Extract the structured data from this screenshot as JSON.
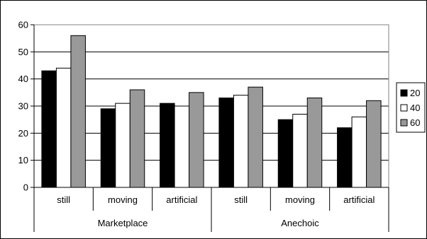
{
  "chart_data": {
    "type": "bar",
    "title": "",
    "xlabel": "",
    "ylabel": "",
    "ylim": [
      0,
      60
    ],
    "yticks": [
      0,
      10,
      20,
      30,
      40,
      50,
      60
    ],
    "grid": true,
    "legend_position": "right",
    "categories": [
      {
        "label": "still",
        "group": "Marketplace"
      },
      {
        "label": "moving",
        "group": "Marketplace"
      },
      {
        "label": "artificial",
        "group": "Marketplace"
      },
      {
        "label": "still",
        "group": "Anechoic"
      },
      {
        "label": "moving",
        "group": "Anechoic"
      },
      {
        "label": "artificial",
        "group": "Anechoic"
      }
    ],
    "groups": [
      "Marketplace",
      "Anechoic"
    ],
    "series": [
      {
        "name": "20",
        "color": "#000000",
        "values": [
          43,
          29,
          31,
          33,
          25,
          22
        ]
      },
      {
        "name": "40",
        "color": "#ffffff",
        "values": [
          44,
          31,
          30,
          34,
          27,
          26
        ]
      },
      {
        "name": "60",
        "color": "#999999",
        "values": [
          56,
          36,
          35,
          37,
          33,
          32
        ]
      }
    ]
  }
}
